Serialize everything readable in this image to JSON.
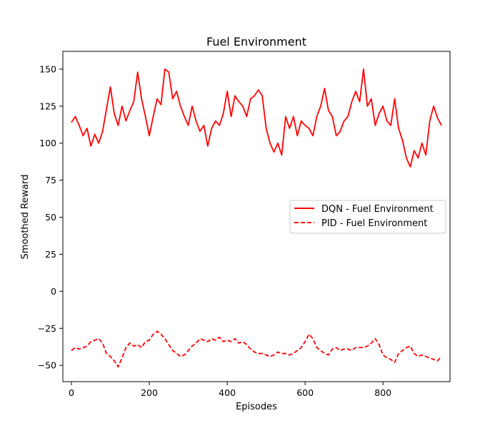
{
  "chart_data": {
    "type": "line",
    "title": "Fuel Environment",
    "xlabel": "Episodes",
    "ylabel": "Smoothed Reward",
    "xlim": [
      -22,
      972
    ],
    "ylim": [
      -61,
      162
    ],
    "xticks": [
      0,
      200,
      400,
      600,
      800
    ],
    "yticks": [
      -50,
      -25,
      0,
      25,
      50,
      75,
      100,
      125,
      150
    ],
    "grid": false,
    "legend_position": "center-right",
    "series": [
      {
        "name": "DQN - Fuel Environment",
        "color": "#ff0000",
        "style": "solid",
        "x": [
          0,
          10,
          20,
          30,
          40,
          50,
          60,
          70,
          80,
          90,
          100,
          110,
          120,
          130,
          140,
          150,
          160,
          170,
          180,
          190,
          200,
          210,
          220,
          230,
          240,
          250,
          260,
          270,
          280,
          290,
          300,
          310,
          320,
          330,
          340,
          350,
          360,
          370,
          380,
          390,
          400,
          410,
          420,
          430,
          440,
          450,
          460,
          470,
          480,
          490,
          500,
          510,
          520,
          530,
          540,
          550,
          560,
          570,
          580,
          590,
          600,
          610,
          620,
          630,
          640,
          650,
          660,
          670,
          680,
          690,
          700,
          710,
          720,
          730,
          740,
          750,
          760,
          770,
          780,
          790,
          800,
          810,
          820,
          830,
          840,
          850,
          860,
          870,
          880,
          890,
          900,
          910,
          920,
          930,
          940,
          950
        ],
        "values": [
          114,
          118,
          112,
          105,
          110,
          98,
          106,
          100,
          108,
          123,
          138,
          120,
          112,
          125,
          115,
          122,
          128,
          148,
          130,
          118,
          105,
          118,
          130,
          126,
          150,
          148,
          130,
          135,
          125,
          118,
          112,
          125,
          115,
          108,
          112,
          98,
          110,
          115,
          112,
          120,
          135,
          118,
          132,
          128,
          125,
          118,
          130,
          132,
          136,
          132,
          110,
          100,
          94,
          100,
          92,
          118,
          110,
          118,
          105,
          115,
          112,
          110,
          105,
          118,
          125,
          137,
          122,
          118,
          105,
          108,
          115,
          118,
          128,
          135,
          128,
          150,
          125,
          130,
          112,
          120,
          125,
          115,
          112,
          130,
          110,
          102,
          90,
          84,
          95,
          90,
          100,
          92,
          115,
          125,
          117,
          112
        ]
      },
      {
        "name": "PID - Fuel Environment",
        "color": "#ff0000",
        "style": "dashed",
        "x": [
          0,
          10,
          20,
          30,
          40,
          50,
          60,
          70,
          80,
          90,
          100,
          110,
          120,
          130,
          140,
          150,
          160,
          170,
          180,
          190,
          200,
          210,
          220,
          230,
          240,
          250,
          260,
          270,
          280,
          290,
          300,
          310,
          320,
          330,
          340,
          350,
          360,
          370,
          380,
          390,
          400,
          410,
          420,
          430,
          440,
          450,
          460,
          470,
          480,
          490,
          500,
          510,
          520,
          530,
          540,
          550,
          560,
          570,
          580,
          590,
          600,
          610,
          620,
          630,
          640,
          650,
          660,
          670,
          680,
          690,
          700,
          710,
          720,
          730,
          740,
          750,
          760,
          770,
          780,
          790,
          800,
          810,
          820,
          830,
          840,
          850,
          860,
          870,
          880,
          890,
          900,
          910,
          920,
          930,
          940,
          950
        ],
        "values": [
          -40,
          -38,
          -39,
          -38,
          -37,
          -34,
          -33,
          -32,
          -35,
          -42,
          -44,
          -47,
          -51,
          -45,
          -38,
          -35,
          -37,
          -36,
          -38,
          -34,
          -33,
          -29,
          -27,
          -29,
          -32,
          -36,
          -40,
          -42,
          -44,
          -43,
          -40,
          -37,
          -35,
          -32,
          -33,
          -34,
          -32,
          -33,
          -31,
          -34,
          -33,
          -34,
          -32,
          -35,
          -34,
          -36,
          -39,
          -41,
          -42,
          -42,
          -43,
          -44,
          -43,
          -41,
          -42,
          -42,
          -43,
          -42,
          -40,
          -38,
          -34,
          -29,
          -32,
          -38,
          -40,
          -42,
          -43,
          -39,
          -38,
          -40,
          -39,
          -39,
          -40,
          -38,
          -38,
          -38,
          -37,
          -35,
          -32,
          -36,
          -43,
          -45,
          -46,
          -48,
          -42,
          -40,
          -38,
          -37,
          -42,
          -44,
          -43,
          -44,
          -45,
          -46,
          -47,
          -44
        ]
      }
    ]
  }
}
